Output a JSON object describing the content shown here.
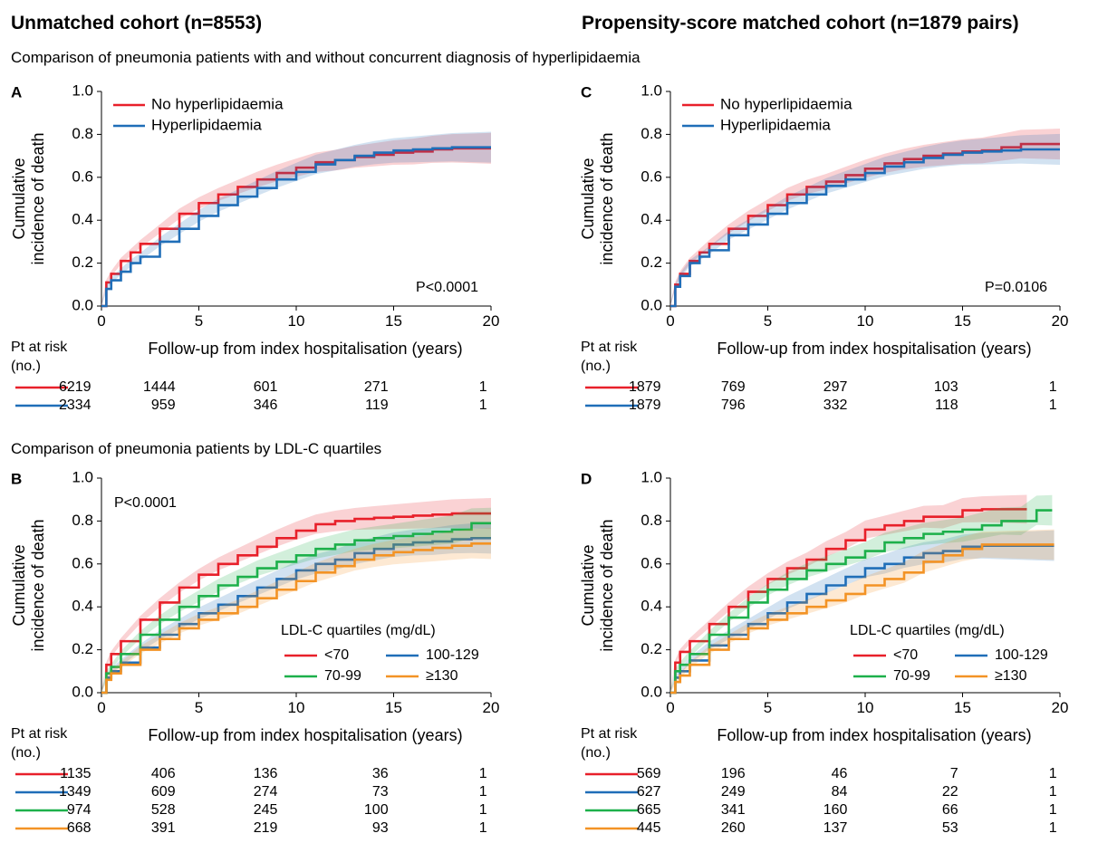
{
  "headers": {
    "left": "Unmatched cohort (n=8553)",
    "right": "Propensity-score matched cohort (n=1879 pairs)"
  },
  "sections": {
    "top": "Comparison of pneumonia patients with and without concurrent diagnosis of hyperlipidaemia",
    "bottom": "Comparison of pneumonia patients by LDL-C quartiles"
  },
  "colors": {
    "red": "#e8202a",
    "blue": "#1f6eb8",
    "green": "#1db04b",
    "orange": "#f39325"
  },
  "chart_data": [
    {
      "panel": "A",
      "type": "line",
      "ylabel": "Cumulative incidence of death",
      "xlabel": "Follow-up from index hospitalisation (years)",
      "xlim": [
        0,
        20
      ],
      "ylim": [
        0,
        1
      ],
      "xticks": [
        "0",
        "5",
        "10",
        "15",
        "20"
      ],
      "yticks": [
        "0.0",
        "0.2",
        "0.4",
        "0.6",
        "0.8",
        "1.0"
      ],
      "pvalue": "P<0.0001",
      "legend_title": "",
      "legend_position": "top-left",
      "risk_label": [
        "Pt at risk",
        "(no.)"
      ],
      "risk_times": [
        0,
        5,
        10,
        15,
        20
      ],
      "series": [
        {
          "name": "No hyperlipidaemia",
          "color": "red",
          "x": [
            0,
            0.25,
            0.5,
            1,
            1.5,
            2,
            3,
            4,
            5,
            6,
            7,
            8,
            9,
            10,
            11,
            12,
            13,
            14,
            15,
            16,
            17,
            18,
            19,
            20
          ],
          "y": [
            0,
            0.11,
            0.15,
            0.21,
            0.25,
            0.29,
            0.36,
            0.43,
            0.48,
            0.52,
            0.555,
            0.59,
            0.62,
            0.645,
            0.67,
            0.68,
            0.695,
            0.705,
            0.715,
            0.72,
            0.73,
            0.735,
            0.735,
            0.735
          ],
          "risk": [
            "6219",
            "1444",
            "601",
            "271",
            "1"
          ]
        },
        {
          "name": "Hyperlipidaemia",
          "color": "blue",
          "x": [
            0,
            0.25,
            0.5,
            1,
            1.5,
            2,
            3,
            4,
            5,
            6,
            7,
            8,
            9,
            10,
            11,
            12,
            13,
            14,
            15,
            16,
            17,
            18,
            19,
            20
          ],
          "y": [
            0,
            0.08,
            0.12,
            0.16,
            0.2,
            0.23,
            0.3,
            0.36,
            0.42,
            0.47,
            0.51,
            0.55,
            0.59,
            0.625,
            0.66,
            0.68,
            0.7,
            0.715,
            0.725,
            0.73,
            0.735,
            0.74,
            0.74,
            0.74
          ],
          "risk": [
            "2334",
            "959",
            "346",
            "119",
            "1"
          ]
        }
      ]
    },
    {
      "panel": "C",
      "type": "line",
      "ylabel": "Cumulative incidence of death",
      "xlabel": "Follow-up from index hospitalisation (years)",
      "xlim": [
        0,
        20
      ],
      "ylim": [
        0,
        1
      ],
      "xticks": [
        "0",
        "5",
        "10",
        "15",
        "20"
      ],
      "yticks": [
        "0.0",
        "0.2",
        "0.4",
        "0.6",
        "0.8",
        "1.0"
      ],
      "pvalue": "P=0.0106",
      "legend_title": "",
      "legend_position": "top-left",
      "risk_label": [
        "Pt at risk",
        "(no.)"
      ],
      "risk_times": [
        0,
        5,
        10,
        15,
        20
      ],
      "series": [
        {
          "name": "No hyperlipidaemia",
          "color": "red",
          "x": [
            0,
            0.25,
            0.5,
            1,
            1.5,
            2,
            3,
            4,
            5,
            6,
            7,
            8,
            9,
            10,
            11,
            12,
            13,
            14,
            15,
            16,
            17,
            18,
            19,
            20
          ],
          "y": [
            0,
            0.1,
            0.15,
            0.21,
            0.25,
            0.29,
            0.36,
            0.42,
            0.47,
            0.52,
            0.555,
            0.58,
            0.61,
            0.64,
            0.665,
            0.685,
            0.7,
            0.71,
            0.72,
            0.725,
            0.74,
            0.755,
            0.755,
            0.755
          ],
          "risk": [
            "1879",
            "769",
            "297",
            "103",
            "1"
          ]
        },
        {
          "name": "Hyperlipidaemia",
          "color": "blue",
          "x": [
            0,
            0.25,
            0.5,
            1,
            1.5,
            2,
            3,
            4,
            5,
            6,
            7,
            8,
            9,
            10,
            11,
            12,
            13,
            14,
            15,
            16,
            17,
            18,
            19,
            20
          ],
          "y": [
            0,
            0.09,
            0.14,
            0.2,
            0.23,
            0.26,
            0.33,
            0.38,
            0.43,
            0.48,
            0.52,
            0.56,
            0.59,
            0.62,
            0.65,
            0.67,
            0.69,
            0.705,
            0.715,
            0.72,
            0.725,
            0.73,
            0.73,
            0.73
          ],
          "risk": [
            "1879",
            "796",
            "332",
            "118",
            "1"
          ]
        }
      ]
    },
    {
      "panel": "B",
      "type": "line",
      "ylabel": "Cumulative incidence of death",
      "xlabel": "Follow-up from index hospitalisation (years)",
      "xlim": [
        0,
        20
      ],
      "ylim": [
        0,
        1
      ],
      "xticks": [
        "0",
        "5",
        "10",
        "15",
        "20"
      ],
      "yticks": [
        "0.0",
        "0.2",
        "0.4",
        "0.6",
        "0.8",
        "1.0"
      ],
      "pvalue": "P<0.0001",
      "legend_title": "LDL-C quartiles (mg/dL)",
      "legend_position": "bottom-right",
      "risk_label": [
        "Pt at risk",
        "(no.)"
      ],
      "risk_times": [
        0,
        5,
        10,
        15,
        20
      ],
      "series": [
        {
          "name": "<70",
          "color": "red",
          "x": [
            0,
            0.25,
            0.5,
            1,
            2,
            3,
            4,
            5,
            6,
            7,
            8,
            9,
            10,
            11,
            12,
            13,
            14,
            15,
            16,
            17,
            18,
            19,
            20
          ],
          "y": [
            0,
            0.13,
            0.18,
            0.24,
            0.34,
            0.42,
            0.49,
            0.55,
            0.6,
            0.64,
            0.68,
            0.72,
            0.755,
            0.785,
            0.8,
            0.81,
            0.815,
            0.82,
            0.825,
            0.83,
            0.835,
            0.835,
            0.835
          ],
          "risk": [
            "1135",
            "406",
            "136",
            "36",
            "1"
          ]
        },
        {
          "name": "100-129",
          "color": "blue",
          "x": [
            0,
            0.25,
            0.5,
            1,
            2,
            3,
            4,
            5,
            6,
            7,
            8,
            9,
            10,
            11,
            12,
            13,
            14,
            15,
            16,
            17,
            18,
            19,
            20
          ],
          "y": [
            0,
            0.07,
            0.1,
            0.14,
            0.21,
            0.27,
            0.32,
            0.37,
            0.41,
            0.45,
            0.49,
            0.53,
            0.57,
            0.6,
            0.62,
            0.65,
            0.67,
            0.69,
            0.7,
            0.705,
            0.715,
            0.72,
            0.72
          ],
          "risk": [
            "1349",
            "609",
            "274",
            "73",
            "1"
          ]
        },
        {
          "name": "70-99",
          "color": "green",
          "x": [
            0,
            0.25,
            0.5,
            1,
            2,
            3,
            4,
            5,
            6,
            7,
            8,
            9,
            10,
            11,
            12,
            13,
            14,
            15,
            16,
            17,
            18,
            19,
            20
          ],
          "y": [
            0,
            0.09,
            0.12,
            0.18,
            0.27,
            0.34,
            0.4,
            0.45,
            0.5,
            0.54,
            0.58,
            0.61,
            0.64,
            0.67,
            0.69,
            0.71,
            0.72,
            0.73,
            0.74,
            0.75,
            0.76,
            0.79,
            0.79
          ],
          "risk": [
            "974",
            "528",
            "245",
            "100",
            "1"
          ]
        },
        {
          "name": "≥130",
          "color": "orange",
          "x": [
            0,
            0.25,
            0.5,
            1,
            2,
            3,
            4,
            5,
            6,
            7,
            8,
            9,
            10,
            11,
            12,
            13,
            14,
            15,
            16,
            17,
            18,
            19,
            20
          ],
          "y": [
            0,
            0.06,
            0.09,
            0.13,
            0.2,
            0.25,
            0.3,
            0.34,
            0.37,
            0.4,
            0.44,
            0.48,
            0.52,
            0.56,
            0.59,
            0.62,
            0.64,
            0.655,
            0.665,
            0.675,
            0.685,
            0.695,
            0.695
          ],
          "risk": [
            "668",
            "391",
            "219",
            "93",
            "1"
          ]
        }
      ]
    },
    {
      "panel": "D",
      "type": "line",
      "ylabel": "Cumulative incidence of death",
      "xlabel": "Follow-up from index hospitalisation (years)",
      "xlim": [
        0,
        20
      ],
      "ylim": [
        0,
        1
      ],
      "xticks": [
        "0",
        "5",
        "10",
        "15",
        "20"
      ],
      "yticks": [
        "0.0",
        "0.2",
        "0.4",
        "0.6",
        "0.8",
        "1.0"
      ],
      "pvalue": "",
      "legend_title": "LDL-C quartiles (mg/dL)",
      "legend_position": "bottom-right",
      "risk_label": [
        "Pt at risk",
        "(no.)"
      ],
      "risk_times": [
        0,
        5,
        10,
        15,
        20
      ],
      "series": [
        {
          "name": "<70",
          "color": "red",
          "x": [
            0,
            0.25,
            0.5,
            1,
            2,
            3,
            4,
            5,
            6,
            7,
            8,
            9,
            10,
            11,
            12,
            13,
            14,
            15,
            16,
            17,
            18.3
          ],
          "y": [
            0,
            0.14,
            0.19,
            0.24,
            0.32,
            0.4,
            0.47,
            0.53,
            0.58,
            0.62,
            0.67,
            0.71,
            0.76,
            0.78,
            0.8,
            0.82,
            0.82,
            0.85,
            0.855,
            0.855,
            0.855
          ],
          "risk": [
            "569",
            "196",
            "46",
            "7",
            "1"
          ]
        },
        {
          "name": "100-129",
          "color": "blue",
          "x": [
            0,
            0.25,
            0.5,
            1,
            2,
            3,
            4,
            5,
            6,
            7,
            8,
            9,
            10,
            11,
            12,
            13,
            14,
            15,
            16,
            17,
            18,
            19,
            19.7
          ],
          "y": [
            0,
            0.07,
            0.1,
            0.15,
            0.22,
            0.27,
            0.32,
            0.37,
            0.42,
            0.46,
            0.5,
            0.54,
            0.58,
            0.6,
            0.63,
            0.65,
            0.66,
            0.68,
            0.685,
            0.685,
            0.685,
            0.685,
            0.685
          ],
          "risk": [
            "627",
            "249",
            "84",
            "22",
            "1"
          ]
        },
        {
          "name": "70-99",
          "color": "green",
          "x": [
            0,
            0.25,
            0.5,
            1,
            2,
            3,
            4,
            5,
            6,
            7,
            8,
            9,
            10,
            11,
            12,
            13,
            14,
            15,
            16,
            17,
            18,
            18.8,
            19.6
          ],
          "y": [
            0,
            0.1,
            0.13,
            0.18,
            0.27,
            0.35,
            0.42,
            0.48,
            0.53,
            0.57,
            0.6,
            0.63,
            0.66,
            0.7,
            0.72,
            0.74,
            0.75,
            0.76,
            0.78,
            0.8,
            0.8,
            0.85,
            0.85
          ],
          "risk": [
            "665",
            "341",
            "160",
            "66",
            "1"
          ]
        },
        {
          "name": "≥130",
          "color": "orange",
          "x": [
            0,
            0.25,
            0.5,
            1,
            2,
            3,
            4,
            5,
            6,
            7,
            8,
            9,
            10,
            11,
            12,
            13,
            14,
            15,
            16,
            17,
            18,
            19,
            19.7
          ],
          "y": [
            0,
            0.05,
            0.08,
            0.13,
            0.2,
            0.25,
            0.3,
            0.34,
            0.37,
            0.4,
            0.43,
            0.46,
            0.5,
            0.53,
            0.56,
            0.61,
            0.64,
            0.67,
            0.69,
            0.69,
            0.69,
            0.69,
            0.69
          ],
          "risk": [
            "445",
            "260",
            "137",
            "53",
            "1"
          ]
        }
      ]
    }
  ]
}
